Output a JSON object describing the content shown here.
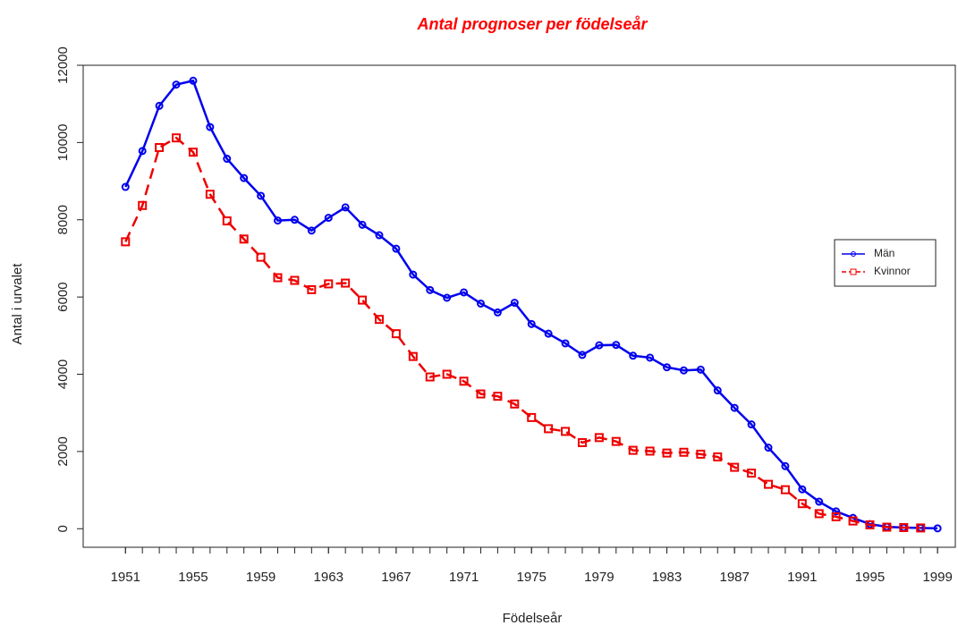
{
  "chart_data": {
    "type": "line",
    "title": "Antal prognoser per födelseår",
    "x_label": "Födelseår",
    "y_label": "Antal i urvalet",
    "x": [
      1951,
      1952,
      1953,
      1954,
      1955,
      1956,
      1957,
      1958,
      1959,
      1960,
      1961,
      1962,
      1963,
      1964,
      1965,
      1966,
      1967,
      1968,
      1969,
      1970,
      1971,
      1972,
      1973,
      1974,
      1975,
      1976,
      1977,
      1978,
      1979,
      1980,
      1981,
      1982,
      1983,
      1984,
      1985,
      1986,
      1987,
      1988,
      1989,
      1990,
      1991,
      1992,
      1993,
      1994,
      1995,
      1996,
      1997,
      1998,
      1999
    ],
    "series": [
      {
        "name": "Män",
        "color": "#0000ee",
        "dash": false,
        "marker": "circle",
        "values": [
          8850,
          9780,
          10950,
          11500,
          11600,
          10400,
          9580,
          9080,
          8620,
          7980,
          8000,
          7720,
          8050,
          8320,
          7870,
          7600,
          7250,
          6580,
          6180,
          5980,
          6120,
          5830,
          5600,
          5850,
          5300,
          5050,
          4800,
          4500,
          4750,
          4760,
          4480,
          4430,
          4180,
          4100,
          4120,
          3580,
          3130,
          2700,
          2100,
          1620,
          1020,
          700,
          450,
          280,
          120,
          50,
          30,
          20,
          10
        ]
      },
      {
        "name": "Kvinnor",
        "color": "#ee0000",
        "dash": true,
        "marker": "square",
        "values": [
          7430,
          8370,
          9870,
          10120,
          9750,
          8660,
          7970,
          7500,
          7030,
          6500,
          6430,
          6190,
          6340,
          6360,
          5920,
          5420,
          5050,
          4460,
          3930,
          4000,
          3820,
          3490,
          3430,
          3230,
          2880,
          2590,
          2520,
          2230,
          2360,
          2260,
          2030,
          2010,
          1960,
          1980,
          1930,
          1860,
          1590,
          1440,
          1150,
          1010,
          650,
          390,
          310,
          200,
          100,
          40,
          30,
          20,
          null
        ]
      }
    ],
    "xlim": [
      1948.5,
      2000.05
    ],
    "xticks": [
      1951,
      1955,
      1959,
      1963,
      1967,
      1971,
      1975,
      1979,
      1983,
      1987,
      1991,
      1995,
      1999
    ],
    "ylim": [
      -480,
      12000
    ],
    "yticks": [
      0,
      2000,
      4000,
      6000,
      8000,
      10000,
      12000
    ],
    "legend": "right"
  }
}
